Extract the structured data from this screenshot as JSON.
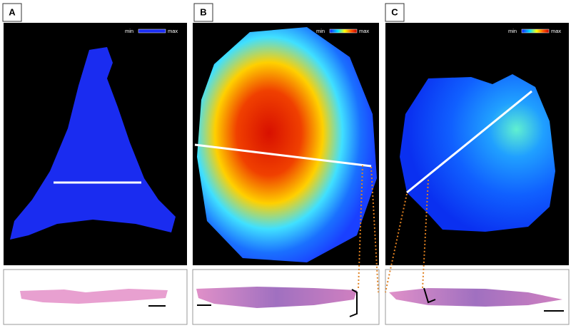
{
  "panels": [
    {
      "label": "A",
      "legend": {
        "min": "min",
        "max": "max"
      }
    },
    {
      "label": "B",
      "legend": {
        "min": "min",
        "max": "max"
      }
    },
    {
      "label": "C",
      "legend": {
        "min": "min",
        "max": "max"
      }
    }
  ]
}
